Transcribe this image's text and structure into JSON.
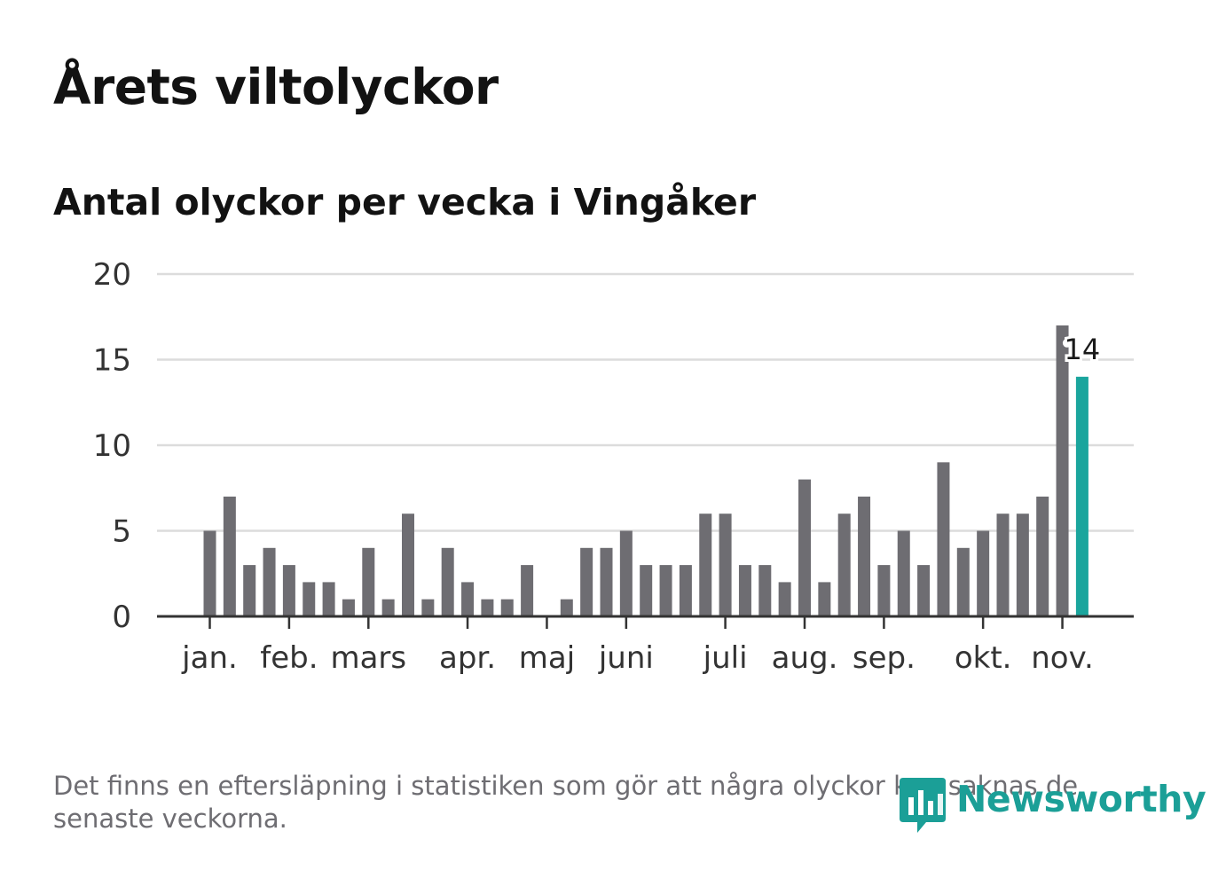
{
  "title": "Årets viltolyckor",
  "subtitle": "Antal olyckor per vecka i Vingåker",
  "footnote": "Det finns en eftersläpning i statistiken som gör att några olyckor kan saknas de senaste veckorna.",
  "brand": {
    "name": "Newsworthy",
    "icon": "newsworthy-logo-icon",
    "color": "#1b9f97"
  },
  "chart_data": {
    "type": "bar",
    "title": "Antal olyckor per vecka i Vingåker",
    "xlabel": "",
    "ylabel": "",
    "ylim": [
      0,
      20
    ],
    "yticks": [
      0,
      5,
      10,
      15,
      20
    ],
    "grid": true,
    "month_labels": [
      {
        "label": "jan.",
        "week": 1
      },
      {
        "label": "feb.",
        "week": 5
      },
      {
        "label": "mars",
        "week": 9
      },
      {
        "label": "apr.",
        "week": 14
      },
      {
        "label": "maj",
        "week": 18
      },
      {
        "label": "juni",
        "week": 22
      },
      {
        "label": "juli",
        "week": 27
      },
      {
        "label": "aug.",
        "week": 31
      },
      {
        "label": "sep.",
        "week": 35
      },
      {
        "label": "okt.",
        "week": 40
      },
      {
        "label": "nov.",
        "week": 44
      }
    ],
    "series": [
      {
        "name": "Antal olyckor",
        "weeks": [
          1,
          2,
          3,
          4,
          5,
          6,
          7,
          8,
          9,
          10,
          11,
          12,
          13,
          14,
          15,
          16,
          17,
          18,
          19,
          20,
          21,
          22,
          23,
          24,
          25,
          26,
          27,
          28,
          29,
          30,
          31,
          32,
          33,
          34,
          35,
          36,
          37,
          38,
          39,
          40,
          41,
          42,
          43,
          44,
          45
        ],
        "values": [
          5,
          7,
          3,
          4,
          3,
          2,
          2,
          1,
          4,
          1,
          6,
          1,
          4,
          2,
          1,
          1,
          3,
          0,
          1,
          4,
          4,
          5,
          3,
          3,
          3,
          6,
          6,
          3,
          3,
          2,
          8,
          2,
          6,
          7,
          3,
          5,
          3,
          9,
          4,
          5,
          6,
          6,
          7,
          17,
          14
        ]
      }
    ],
    "highlight": {
      "week": 45,
      "value": 14,
      "label": "14"
    },
    "colors": {
      "bar": "#6e6d72",
      "highlight": "#1aa59d",
      "grid": "#dcdcdc",
      "axis": "#333333",
      "text": "#333333"
    }
  }
}
